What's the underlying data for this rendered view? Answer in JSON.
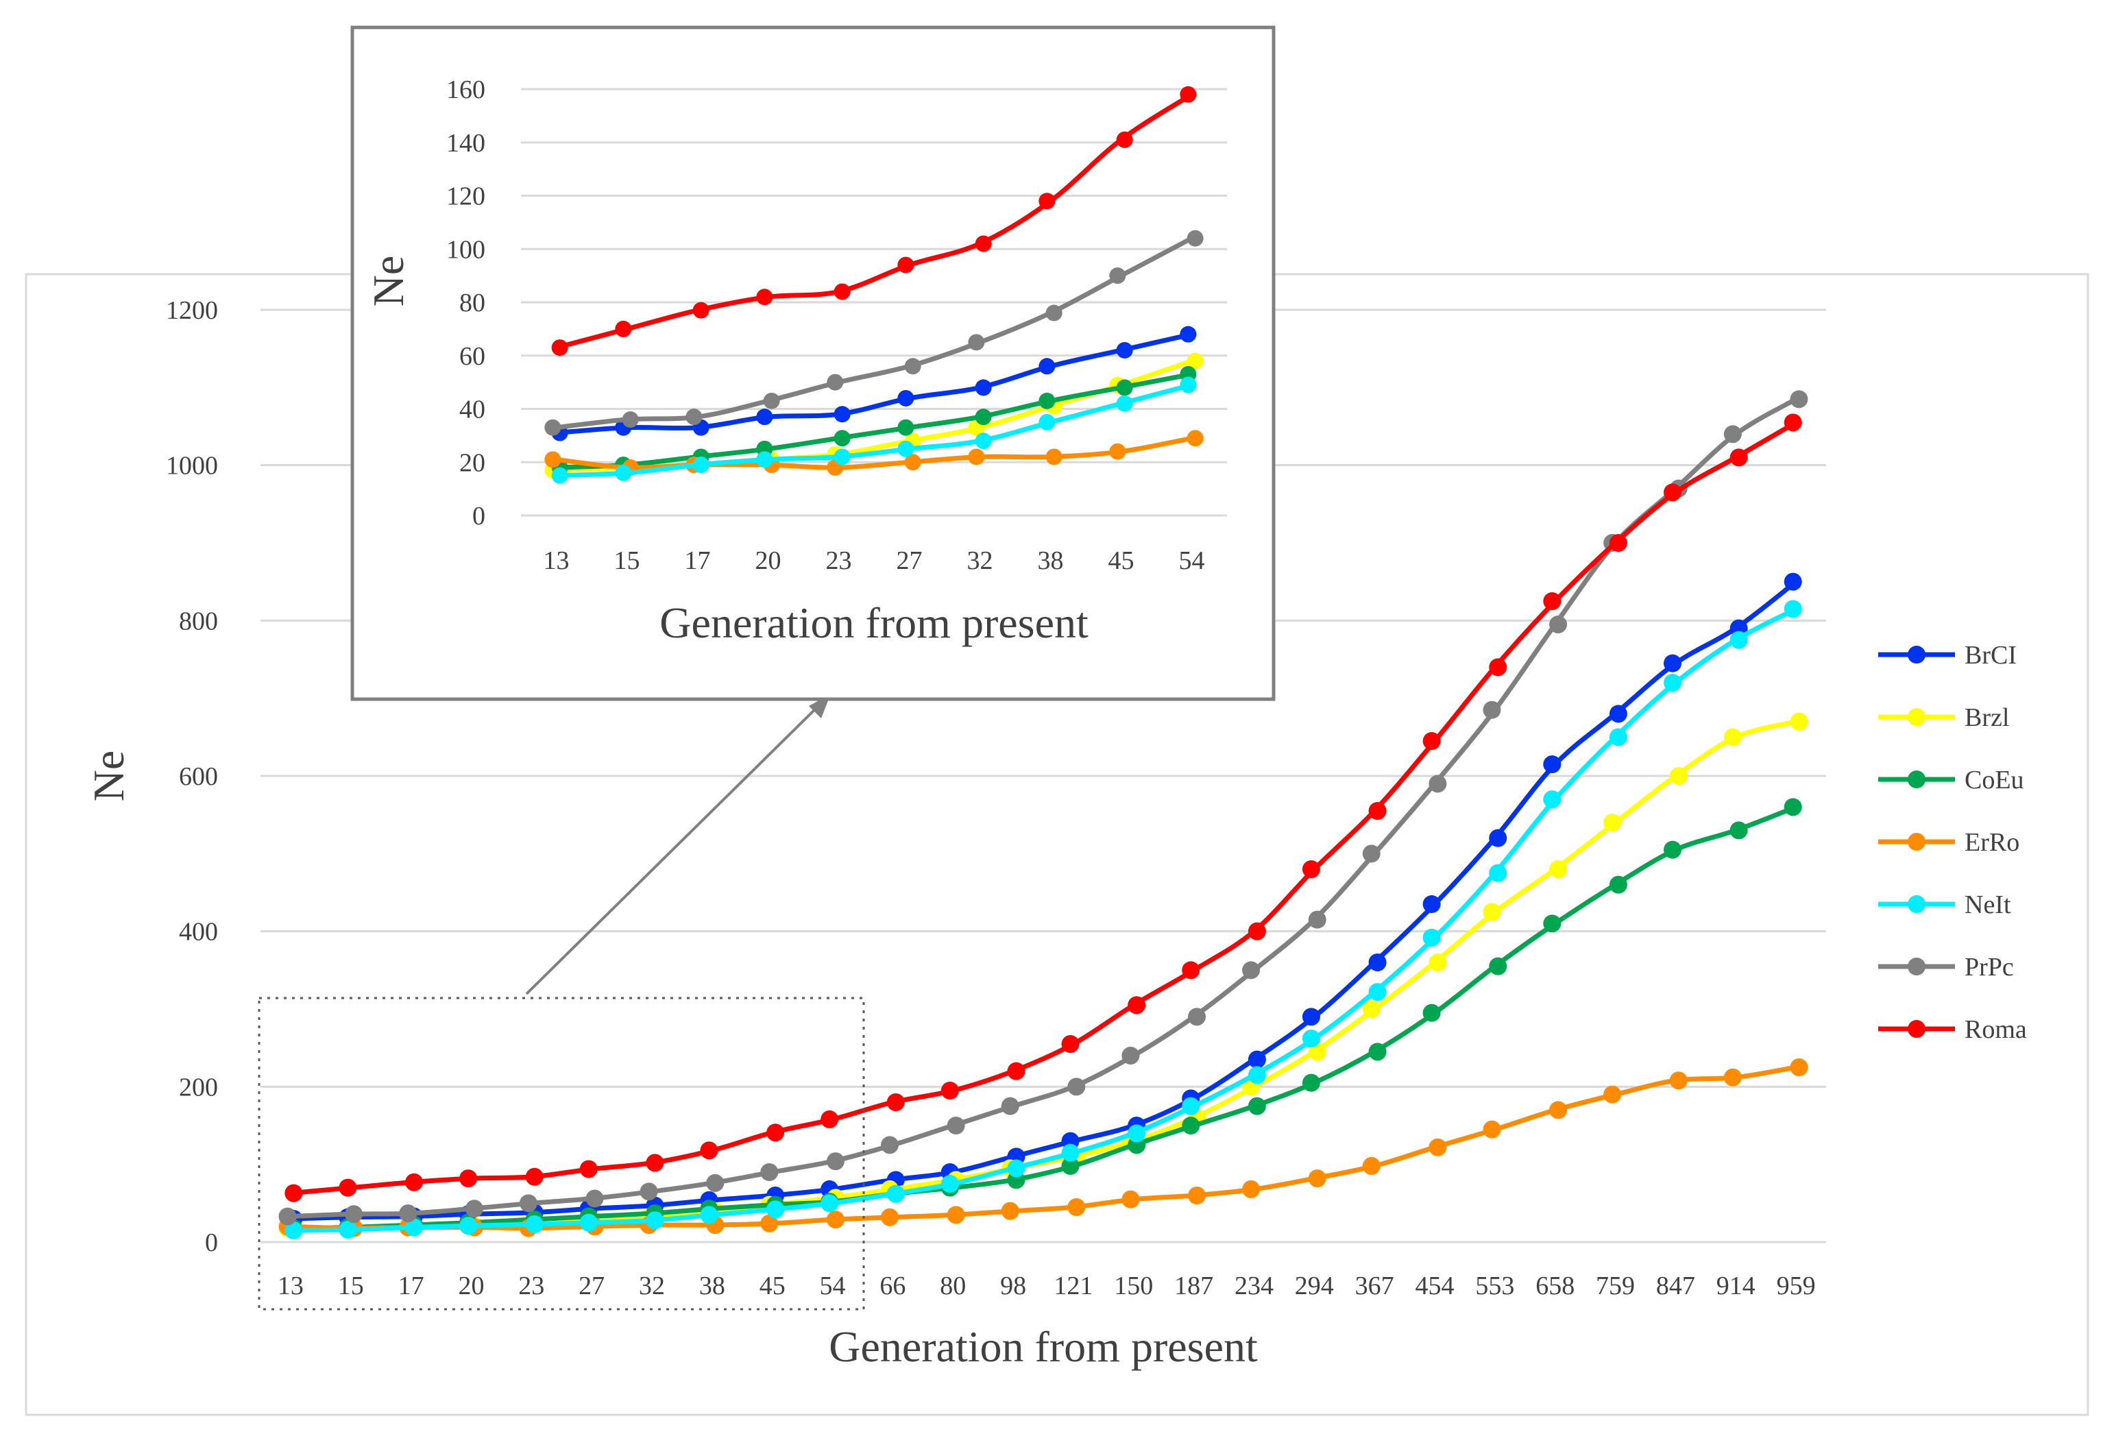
{
  "chart_data": [
    {
      "type": "line",
      "title": "",
      "xlabel": "Generation from present",
      "ylabel": "Ne",
      "ylim": [
        0,
        1200
      ],
      "yticks": [
        0,
        200,
        400,
        600,
        800,
        1000,
        1200
      ],
      "grid": "horizontal",
      "legend_position": "right",
      "categories": [
        "13",
        "15",
        "17",
        "20",
        "23",
        "27",
        "32",
        "38",
        "45",
        "54",
        "66",
        "80",
        "98",
        "121",
        "150",
        "187",
        "234",
        "294",
        "367",
        "454",
        "553",
        "658",
        "759",
        "847",
        "914",
        "959"
      ],
      "series": [
        {
          "name": "BrCI",
          "color": "#0033ee",
          "values": [
            30,
            32,
            33,
            36,
            38,
            43,
            47,
            54,
            60,
            68,
            80,
            90,
            110,
            130,
            150,
            185,
            235,
            290,
            360,
            435,
            520,
            615,
            680,
            745,
            790,
            850
          ]
        },
        {
          "name": "Brzl",
          "color": "#ffff00",
          "values": [
            18,
            19,
            20,
            21,
            23,
            27,
            32,
            40,
            48,
            57,
            68,
            80,
            95,
            110,
            130,
            160,
            200,
            245,
            300,
            360,
            425,
            480,
            540,
            600,
            650,
            670
          ]
        },
        {
          "name": "CoEu",
          "color": "#00a550",
          "values": [
            18,
            19,
            22,
            25,
            29,
            33,
            37,
            43,
            48,
            52,
            62,
            70,
            80,
            98,
            125,
            150,
            175,
            205,
            245,
            295,
            355,
            410,
            460,
            505,
            530,
            560
          ]
        },
        {
          "name": "ErRo",
          "color": "#ff8c00",
          "values": [
            20,
            18,
            19,
            19,
            18,
            20,
            22,
            22,
            24,
            29,
            32,
            35,
            40,
            45,
            55,
            60,
            68,
            82,
            98,
            122,
            145,
            170,
            190,
            208,
            212,
            225
          ]
        },
        {
          "name": "NeIt",
          "color": "#00eeff",
          "values": [
            15,
            16,
            19,
            21,
            23,
            25,
            28,
            35,
            42,
            50,
            62,
            75,
            95,
            115,
            140,
            175,
            215,
            262,
            322,
            392,
            475,
            570,
            650,
            720,
            775,
            815
          ]
        },
        {
          "name": "PrPc",
          "color": "#808080",
          "values": [
            33,
            36,
            37,
            43,
            50,
            56,
            65,
            76,
            90,
            104,
            125,
            150,
            175,
            200,
            240,
            290,
            350,
            415,
            500,
            590,
            685,
            795,
            900,
            970,
            1040,
            1085
          ]
        },
        {
          "name": "Roma",
          "color": "#ff0000",
          "values": [
            63,
            70,
            77,
            82,
            84,
            94,
            102,
            118,
            141,
            158,
            180,
            195,
            220,
            255,
            305,
            350,
            400,
            480,
            555,
            645,
            740,
            825,
            900,
            965,
            1010,
            1055
          ]
        }
      ]
    },
    {
      "type": "line",
      "title": "",
      "xlabel": "Generation from present",
      "ylabel": "Ne",
      "ylim": [
        0,
        160
      ],
      "yticks": [
        0,
        20,
        40,
        60,
        80,
        100,
        120,
        140,
        160
      ],
      "grid": "horizontal",
      "categories": [
        "13",
        "15",
        "17",
        "20",
        "23",
        "27",
        "32",
        "38",
        "45",
        "54"
      ],
      "series": [
        {
          "color": "#0033ee",
          "values": [
            31,
            33,
            33,
            37,
            38,
            44,
            48,
            56,
            62,
            68
          ]
        },
        {
          "color": "#ffff00",
          "values": [
            17,
            18,
            19,
            21,
            23,
            28,
            33,
            41,
            49,
            58
          ]
        },
        {
          "color": "#00a550",
          "values": [
            18,
            19,
            22,
            25,
            29,
            33,
            37,
            43,
            48,
            53
          ]
        },
        {
          "color": "#ff8c00",
          "values": [
            21,
            18,
            19,
            19,
            18,
            20,
            22,
            22,
            24,
            29
          ]
        },
        {
          "color": "#00eeff",
          "values": [
            15,
            16,
            19,
            21,
            22,
            25,
            28,
            35,
            42,
            49
          ]
        },
        {
          "color": "#808080",
          "values": [
            33,
            36,
            37,
            43,
            50,
            56,
            65,
            76,
            90,
            104
          ]
        },
        {
          "color": "#ff0000",
          "values": [
            63,
            70,
            77,
            82,
            84,
            94,
            102,
            118,
            141,
            158
          ]
        }
      ]
    }
  ]
}
